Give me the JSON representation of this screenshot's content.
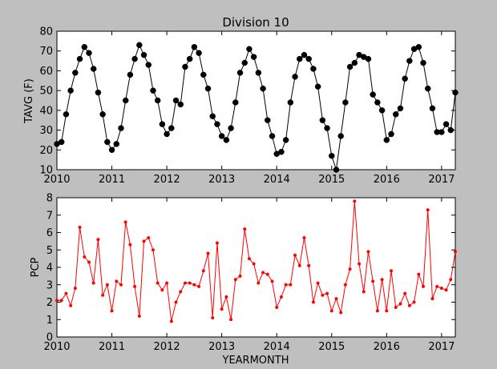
{
  "chart_data": [
    {
      "type": "line",
      "title": "Division 10",
      "ylabel": "TAVG (F)",
      "xlabel": "",
      "xlim": [
        2010.0,
        2017.25
      ],
      "ylim": [
        10,
        80
      ],
      "yticks": [
        "10",
        "20",
        "30",
        "40",
        "50",
        "60",
        "70",
        "80"
      ],
      "xticks": [
        "2010",
        "2011",
        "2012",
        "2013",
        "2014",
        "2015",
        "2016",
        "2017"
      ],
      "color": "#000000",
      "marker": "circle",
      "series": [
        {
          "values": [
            23,
            24,
            38,
            50,
            59,
            66,
            72,
            69,
            61,
            49,
            38,
            24,
            20,
            23,
            31,
            45,
            58,
            66,
            73,
            68,
            63,
            50,
            45,
            33,
            28,
            31,
            45,
            43,
            62,
            66,
            72,
            69,
            58,
            51,
            37,
            33,
            27,
            25,
            31,
            44,
            59,
            64,
            71,
            67,
            59,
            51,
            35,
            27,
            18,
            19,
            25,
            44,
            57,
            66,
            68,
            66,
            61,
            52,
            35,
            31,
            17,
            10,
            27,
            44,
            62,
            64,
            68,
            67,
            66,
            48,
            44,
            40,
            25,
            28,
            38,
            41,
            56,
            65,
            71,
            72,
            64,
            51,
            41,
            29,
            29,
            33,
            30,
            49
          ]
        }
      ]
    },
    {
      "type": "line",
      "title": "",
      "ylabel": "PCP",
      "xlabel": "YEARMONTH",
      "xlim": [
        2010.0,
        2017.25
      ],
      "ylim": [
        0,
        8
      ],
      "yticks": [
        "0",
        "1",
        "2",
        "3",
        "4",
        "5",
        "6",
        "7",
        "8"
      ],
      "xticks": [
        "2010",
        "2011",
        "2012",
        "2013",
        "2014",
        "2015",
        "2016",
        "2017"
      ],
      "color": "#ff0000",
      "marker": "dot",
      "series": [
        {
          "values": [
            2.1,
            2.1,
            2.5,
            1.8,
            2.8,
            6.3,
            4.6,
            4.3,
            3.1,
            5.6,
            2.4,
            3.0,
            1.5,
            3.2,
            3.0,
            6.6,
            5.3,
            2.9,
            1.2,
            5.5,
            5.7,
            5.0,
            3.1,
            2.7,
            3.1,
            0.9,
            2.0,
            2.6,
            3.1,
            3.1,
            3.0,
            2.9,
            3.8,
            4.8,
            1.1,
            5.4,
            1.6,
            2.3,
            1.0,
            3.3,
            3.5,
            6.2,
            4.5,
            4.2,
            3.1,
            3.7,
            3.6,
            3.2,
            1.7,
            2.3,
            3.0,
            3.0,
            4.7,
            4.1,
            5.7,
            4.1,
            2.0,
            3.1,
            2.4,
            2.5,
            1.5,
            2.2,
            1.4,
            3.0,
            3.9,
            7.8,
            4.2,
            2.6,
            4.9,
            3.2,
            1.5,
            3.3,
            1.5,
            3.8,
            1.7,
            1.9,
            2.5,
            1.8,
            2.0,
            3.6,
            2.9,
            7.3,
            2.2,
            2.9,
            2.8,
            2.7,
            3.3,
            4.9
          ]
        }
      ]
    }
  ]
}
